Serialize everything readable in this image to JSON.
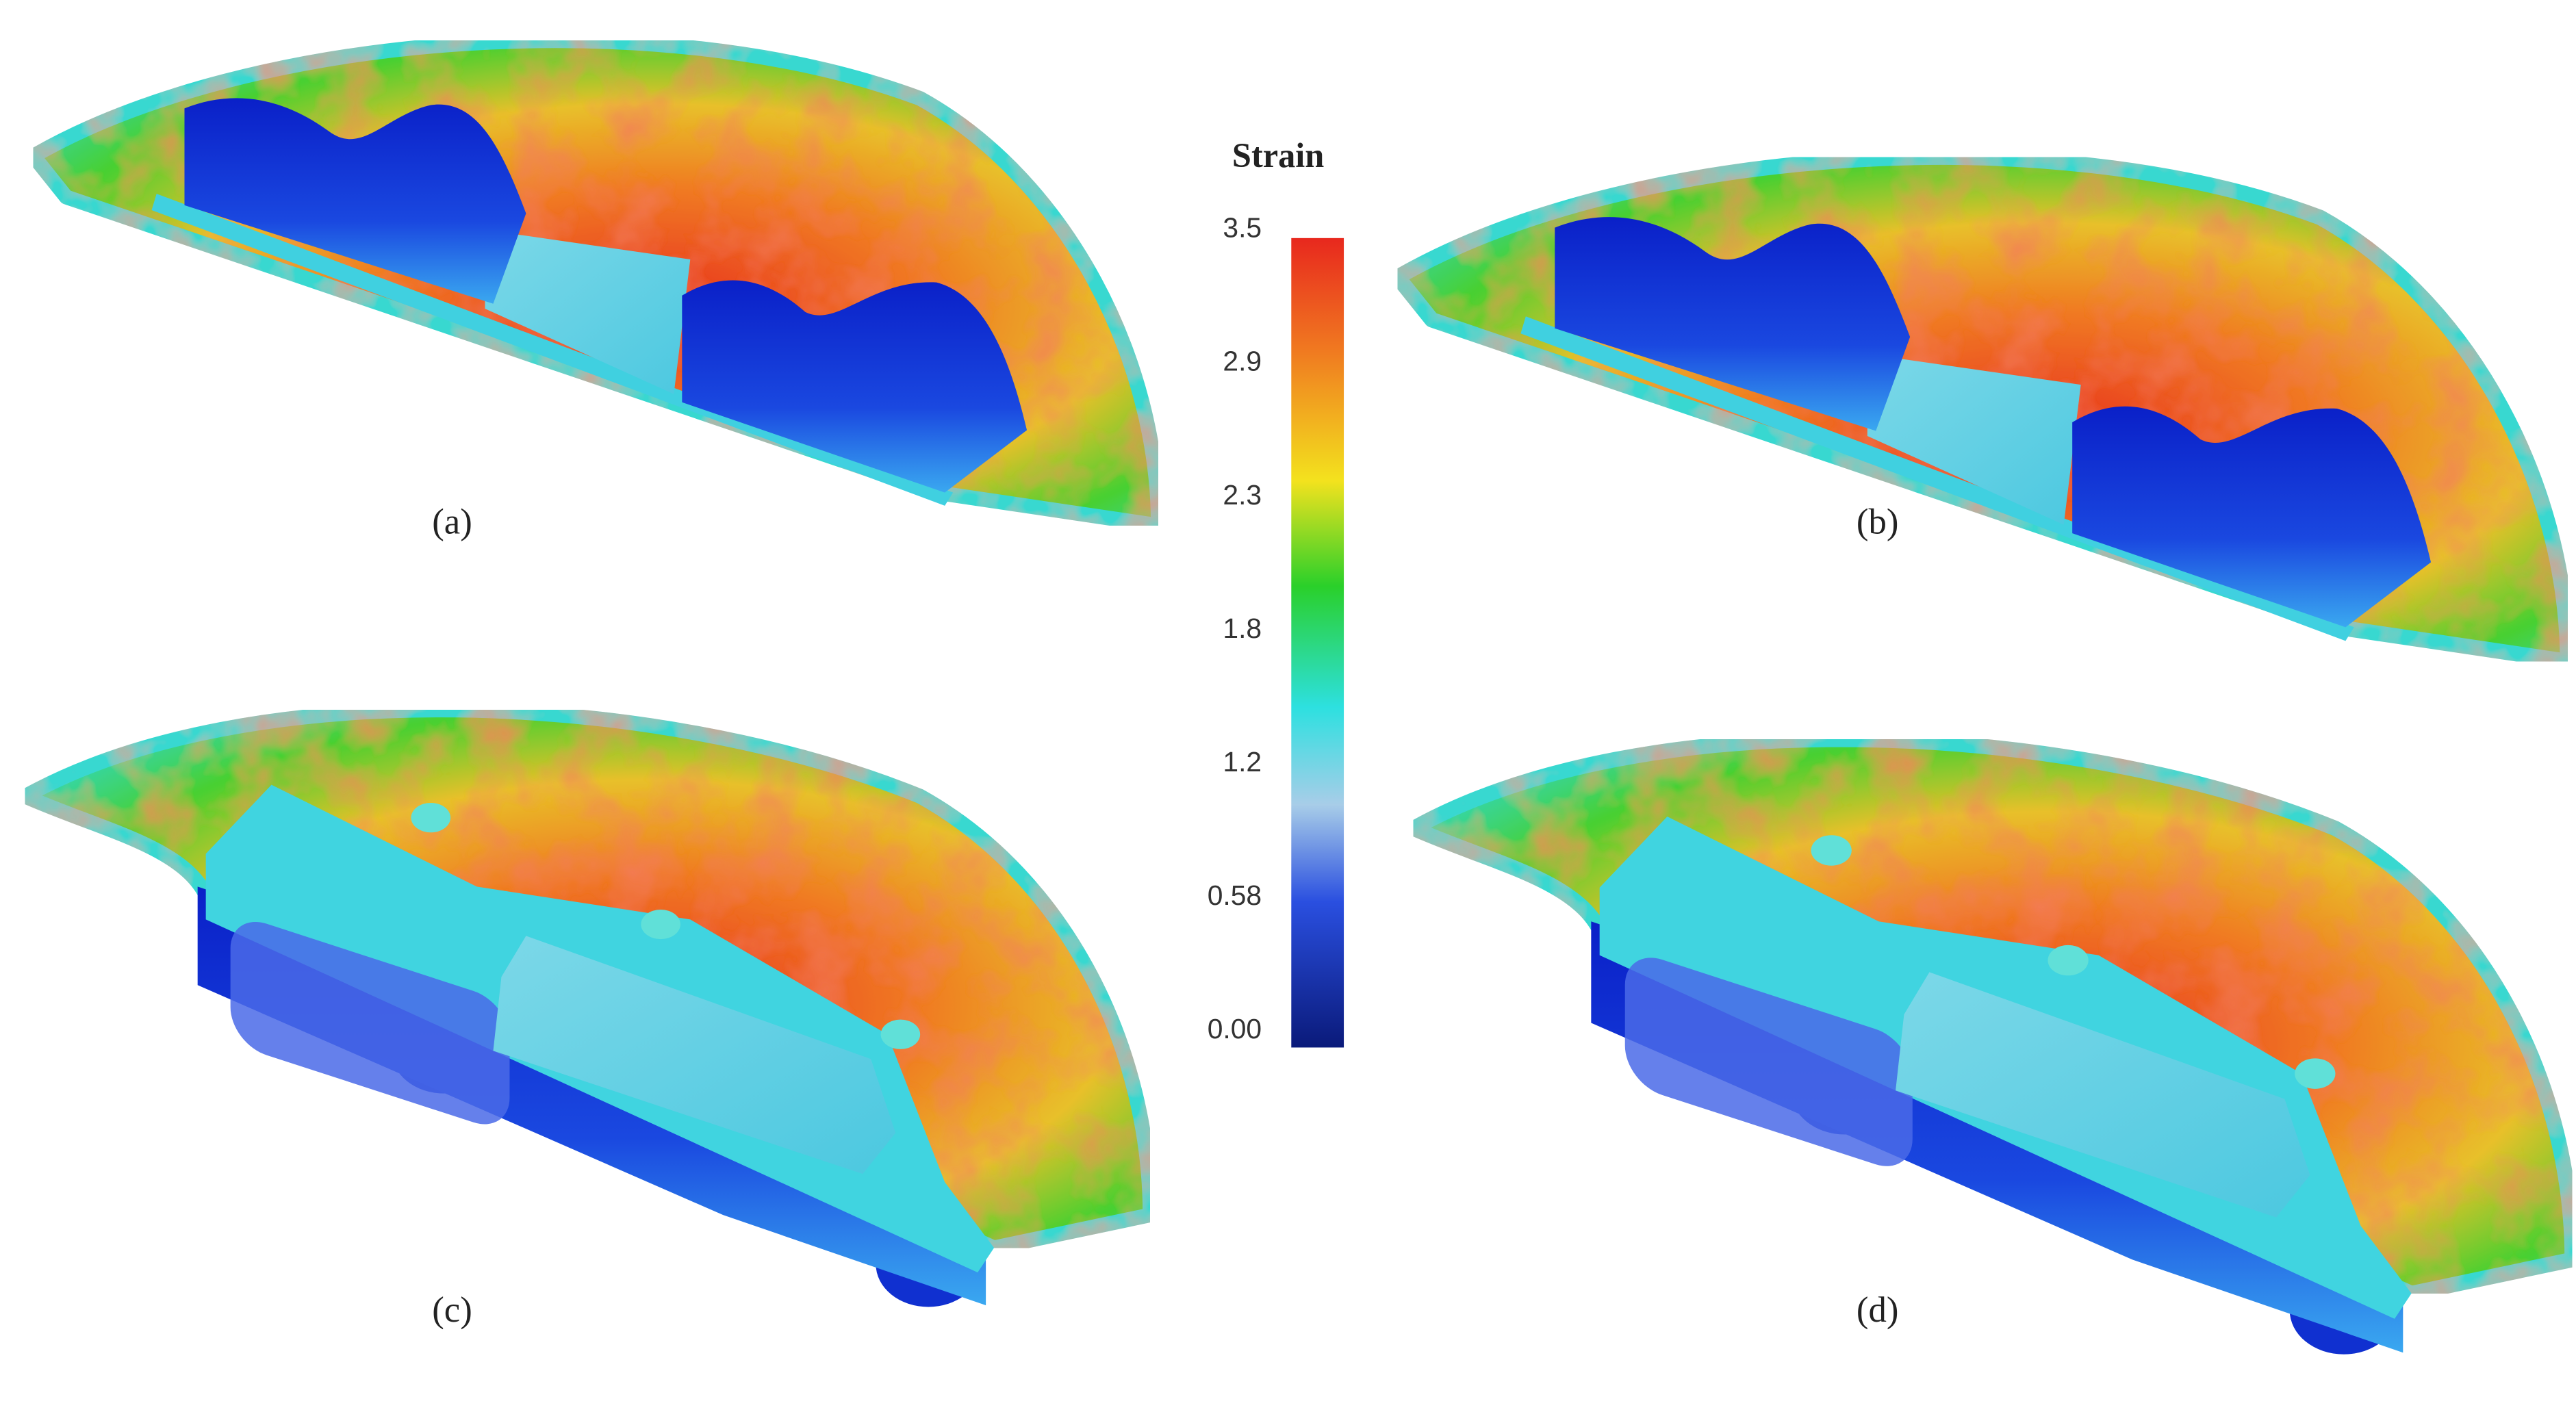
{
  "colorbar": {
    "title": "Strain",
    "ticks": [
      "3.5",
      "2.9",
      "2.3",
      "1.8",
      "1.2",
      "0.58",
      "0.00"
    ]
  },
  "panels": [
    {
      "label": "(a)"
    },
    {
      "label": "(b)"
    },
    {
      "label": "(c)"
    },
    {
      "label": "(d)"
    }
  ]
}
